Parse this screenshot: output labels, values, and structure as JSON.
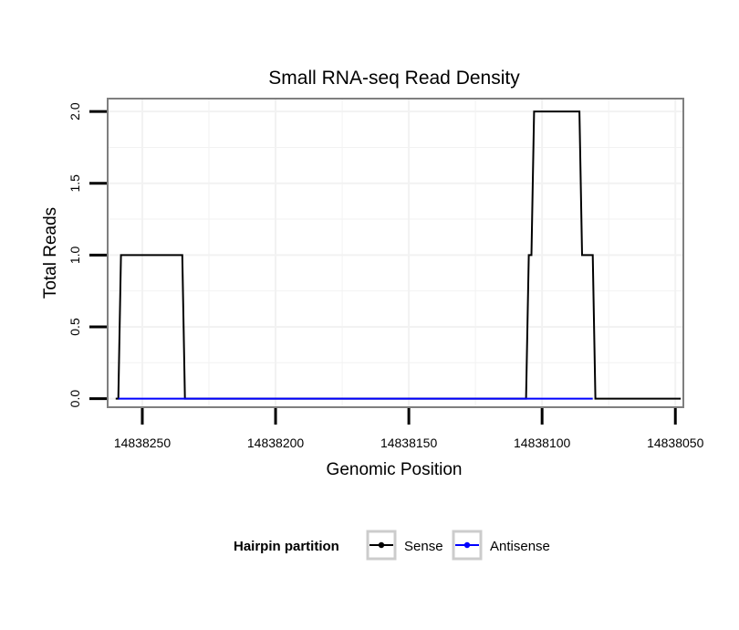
{
  "chart_data": {
    "type": "line",
    "title": "Small RNA-seq Read Density",
    "xlabel": "Genomic Position",
    "ylabel": "Total Reads",
    "x_reversed": true,
    "xlim": [
      14838263,
      14838047
    ],
    "ylim": [
      -0.06,
      2.09
    ],
    "x_ticks": [
      14838250,
      14838200,
      14838150,
      14838100,
      14838050
    ],
    "x_tick_labels": [
      "14838250",
      "14838200",
      "14838150",
      "14838100",
      "14838050"
    ],
    "y_ticks": [
      0,
      0.5,
      1,
      1.5,
      2
    ],
    "y_tick_labels": [
      "0.0",
      "0.5",
      "1.0",
      "1.5",
      "2.0"
    ],
    "grid": true,
    "legend": {
      "title": "Hairpin partition",
      "position": "bottom"
    },
    "series": [
      {
        "name": "Sense",
        "color": "#000000",
        "x": [
          14838260,
          14838259,
          14838258,
          14838235,
          14838234,
          14838106,
          14838105,
          14838104,
          14838103,
          14838086,
          14838085,
          14838084,
          14838081,
          14838080,
          14838048
        ],
        "y": [
          0,
          0,
          1,
          1,
          0,
          0,
          1,
          1,
          2,
          2,
          1,
          1,
          1,
          0,
          0
        ]
      },
      {
        "name": "Antisense",
        "color": "#0000ff",
        "x": [
          14838259,
          14838235,
          14838105,
          14838081
        ],
        "y": [
          0,
          0,
          0,
          0
        ]
      }
    ]
  }
}
